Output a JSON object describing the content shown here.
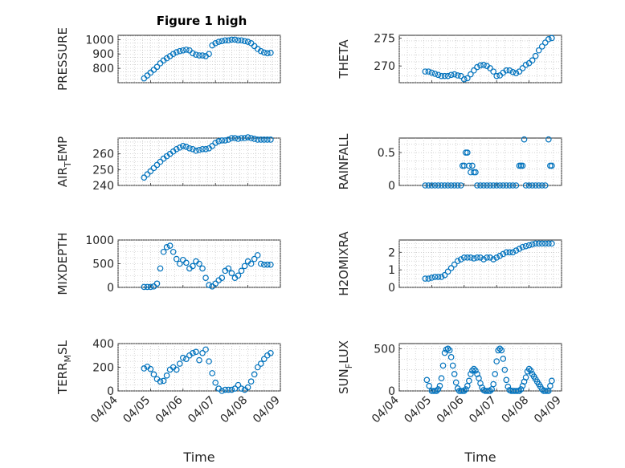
{
  "figure_title": "Figure 1 high",
  "colors": {
    "marker": "#0072BD",
    "axis": "#262626",
    "grid": "#b8b8b8"
  },
  "chart_data": [
    {
      "type": "scatter",
      "id": "pressure",
      "title": "Figure 1 high",
      "ylabel": {
        "main": "PRESSURE",
        "sub": ""
      },
      "xlim": [
        "04/04",
        "04/09"
      ],
      "ylim": [
        700,
        1030
      ],
      "yticks": [
        800,
        900,
        1000
      ],
      "xticklabels": [],
      "xlabel": "",
      "grid": true,
      "x": [
        4.8,
        4.9,
        5.0,
        5.1,
        5.2,
        5.3,
        5.4,
        5.5,
        5.6,
        5.7,
        5.8,
        5.9,
        6.0,
        6.1,
        6.2,
        6.3,
        6.4,
        6.5,
        6.6,
        6.7,
        6.8,
        6.9,
        7.0,
        7.1,
        7.2,
        7.3,
        7.4,
        7.5,
        7.6,
        7.7,
        7.8,
        7.9,
        8.0,
        8.1,
        8.2,
        8.3,
        8.4,
        8.5,
        8.6,
        8.7
      ],
      "y": [
        730,
        750,
        770,
        790,
        810,
        835,
        855,
        870,
        885,
        900,
        912,
        920,
        925,
        930,
        925,
        905,
        895,
        890,
        890,
        885,
        900,
        960,
        975,
        985,
        990,
        995,
        995,
        1000,
        1000,
        995,
        995,
        990,
        985,
        975,
        955,
        935,
        920,
        910,
        905,
        908
      ]
    },
    {
      "type": "scatter",
      "id": "theta",
      "ylabel": {
        "main": "THETA",
        "sub": ""
      },
      "xlim": [
        "04/04",
        "04/09"
      ],
      "ylim": [
        267,
        275.5
      ],
      "yticks": [
        270,
        275
      ],
      "xticklabels": [],
      "xlabel": "",
      "grid": true,
      "x": [
        4.8,
        4.9,
        5.0,
        5.1,
        5.2,
        5.3,
        5.4,
        5.5,
        5.6,
        5.7,
        5.8,
        5.9,
        6.0,
        6.1,
        6.2,
        6.3,
        6.4,
        6.5,
        6.6,
        6.7,
        6.8,
        6.9,
        7.0,
        7.1,
        7.2,
        7.3,
        7.4,
        7.5,
        7.6,
        7.7,
        7.8,
        7.9,
        8.0,
        8.1,
        8.2,
        8.3,
        8.4,
        8.5,
        8.6,
        8.7
      ],
      "y": [
        269,
        269,
        268.8,
        268.6,
        268.4,
        268.2,
        268.2,
        268.2,
        268.4,
        268.5,
        268.3,
        268.2,
        267.6,
        267.8,
        268.5,
        269.2,
        269.8,
        270.1,
        270.2,
        270,
        269.6,
        269,
        268.2,
        268.3,
        268.8,
        269.2,
        269.2,
        268.9,
        268.7,
        269,
        269.6,
        270.2,
        270.5,
        271,
        271.8,
        272.8,
        273.5,
        274.2,
        274.8,
        275
      ]
    },
    {
      "type": "scatter",
      "id": "air_temp",
      "ylabel": {
        "main": "AIR",
        "sub": "T",
        "tail": "EMP"
      },
      "xlim": [
        "04/04",
        "04/09"
      ],
      "ylim": [
        240,
        270
      ],
      "yticks": [
        240,
        250,
        260
      ],
      "xticklabels": [],
      "xlabel": "",
      "grid": true,
      "x": [
        4.8,
        4.9,
        5.0,
        5.1,
        5.2,
        5.3,
        5.4,
        5.5,
        5.6,
        5.7,
        5.8,
        5.9,
        6.0,
        6.1,
        6.2,
        6.3,
        6.4,
        6.5,
        6.6,
        6.7,
        6.8,
        6.9,
        7.0,
        7.1,
        7.2,
        7.3,
        7.4,
        7.5,
        7.6,
        7.7,
        7.8,
        7.9,
        8.0,
        8.1,
        8.2,
        8.3,
        8.4,
        8.5,
        8.6,
        8.7
      ],
      "y": [
        245,
        247,
        249,
        251,
        253,
        255,
        257,
        258.5,
        260,
        261.5,
        263,
        264,
        265,
        264.5,
        263.5,
        263,
        262,
        262.5,
        263,
        263,
        263.5,
        265,
        267,
        268,
        268.5,
        268.5,
        269,
        270,
        270,
        269.5,
        270,
        270,
        270.5,
        270,
        269.5,
        269,
        269,
        269,
        269,
        269
      ]
    },
    {
      "type": "scatter",
      "id": "rainfall",
      "ylabel": {
        "main": "RAINFALL",
        "sub": ""
      },
      "xlim": [
        "04/04",
        "04/09"
      ],
      "ylim": [
        0,
        0.72
      ],
      "yticks": [
        0,
        0.5
      ],
      "xticklabels": [],
      "xlabel": "",
      "grid": true,
      "x": [
        4.8,
        4.9,
        5.0,
        5.1,
        5.2,
        5.3,
        5.4,
        5.5,
        5.6,
        5.7,
        5.8,
        5.9,
        5.95,
        6.0,
        6.05,
        6.1,
        6.15,
        6.2,
        6.25,
        6.3,
        6.35,
        6.4,
        6.5,
        6.6,
        6.7,
        6.8,
        6.9,
        7.0,
        7.1,
        7.2,
        7.3,
        7.4,
        7.5,
        7.6,
        7.7,
        7.75,
        7.8,
        7.85,
        7.9,
        8.0,
        8.1,
        8.2,
        8.3,
        8.4,
        8.5,
        8.6,
        8.65,
        8.7
      ],
      "y": [
        0,
        0,
        0,
        0,
        0,
        0,
        0,
        0,
        0,
        0,
        0,
        0,
        0.3,
        0.3,
        0.5,
        0.5,
        0.3,
        0.2,
        0.3,
        0.2,
        0.2,
        0,
        0,
        0,
        0,
        0,
        0,
        0,
        0,
        0,
        0,
        0,
        0,
        0,
        0.3,
        0.3,
        0.3,
        0.7,
        0,
        0,
        0,
        0,
        0,
        0,
        0,
        0.7,
        0.3,
        0.3
      ]
    },
    {
      "type": "scatter",
      "id": "mixdepth",
      "ylabel": {
        "main": "MIXDEPTH",
        "sub": ""
      },
      "xlim": [
        "04/04",
        "04/09"
      ],
      "ylim": [
        0,
        1000
      ],
      "yticks": [
        0,
        500,
        1000
      ],
      "xticklabels": [],
      "xlabel": "",
      "grid": true,
      "x": [
        4.8,
        4.9,
        5.0,
        5.1,
        5.2,
        5.3,
        5.4,
        5.5,
        5.6,
        5.7,
        5.8,
        5.9,
        6.0,
        6.1,
        6.2,
        6.3,
        6.4,
        6.5,
        6.6,
        6.7,
        6.8,
        6.9,
        7.0,
        7.1,
        7.2,
        7.3,
        7.4,
        7.5,
        7.6,
        7.7,
        7.8,
        7.9,
        8.0,
        8.1,
        8.2,
        8.3,
        8.4,
        8.5,
        8.6,
        8.7
      ],
      "y": [
        10,
        10,
        10,
        20,
        80,
        400,
        750,
        850,
        880,
        750,
        600,
        500,
        580,
        520,
        400,
        450,
        550,
        500,
        400,
        200,
        50,
        20,
        80,
        150,
        200,
        350,
        400,
        300,
        200,
        250,
        350,
        450,
        550,
        500,
        600,
        680,
        500,
        480,
        480,
        480
      ]
    },
    {
      "type": "scatter",
      "id": "h2omixra",
      "ylabel": {
        "main": "H2OMIXRA",
        "sub": ""
      },
      "xlim": [
        "04/04",
        "04/09"
      ],
      "ylim": [
        0,
        2.7
      ],
      "yticks": [
        0,
        1,
        2
      ],
      "xticklabels": [],
      "xlabel": "",
      "grid": true,
      "x": [
        4.8,
        4.9,
        5.0,
        5.1,
        5.2,
        5.3,
        5.4,
        5.5,
        5.6,
        5.7,
        5.8,
        5.9,
        6.0,
        6.1,
        6.2,
        6.3,
        6.4,
        6.5,
        6.6,
        6.7,
        6.8,
        6.9,
        7.0,
        7.1,
        7.2,
        7.3,
        7.4,
        7.5,
        7.6,
        7.7,
        7.8,
        7.9,
        8.0,
        8.1,
        8.2,
        8.3,
        8.4,
        8.5,
        8.6,
        8.7
      ],
      "y": [
        0.5,
        0.5,
        0.55,
        0.6,
        0.6,
        0.6,
        0.7,
        0.9,
        1.1,
        1.3,
        1.5,
        1.6,
        1.7,
        1.7,
        1.7,
        1.65,
        1.7,
        1.7,
        1.6,
        1.7,
        1.7,
        1.6,
        1.7,
        1.8,
        1.9,
        2.0,
        2.0,
        2.0,
        2.1,
        2.2,
        2.3,
        2.35,
        2.4,
        2.45,
        2.5,
        2.5,
        2.5,
        2.5,
        2.5,
        2.5
      ]
    },
    {
      "type": "scatter",
      "id": "terr_msl",
      "ylabel": {
        "main": "TERR",
        "sub": "M",
        "tail": "SL"
      },
      "xlim": [
        "04/04",
        "04/09"
      ],
      "ylim": [
        0,
        400
      ],
      "yticks": [
        0,
        200,
        400
      ],
      "xticklabels": [
        "04/04",
        "04/05",
        "04/06",
        "04/07",
        "04/08",
        "04/09"
      ],
      "xlabel": "Time",
      "grid": true,
      "x": [
        4.8,
        4.9,
        5.0,
        5.1,
        5.2,
        5.3,
        5.4,
        5.5,
        5.6,
        5.7,
        5.8,
        5.9,
        6.0,
        6.1,
        6.2,
        6.3,
        6.4,
        6.5,
        6.6,
        6.7,
        6.8,
        6.9,
        7.0,
        7.1,
        7.2,
        7.3,
        7.4,
        7.5,
        7.6,
        7.7,
        7.8,
        7.9,
        8.0,
        8.1,
        8.2,
        8.3,
        8.4,
        8.5,
        8.6,
        8.7
      ],
      "y": [
        190,
        205,
        185,
        140,
        100,
        80,
        85,
        130,
        180,
        200,
        180,
        230,
        280,
        270,
        300,
        320,
        330,
        260,
        320,
        350,
        250,
        150,
        70,
        20,
        0,
        10,
        10,
        10,
        20,
        50,
        20,
        10,
        30,
        80,
        140,
        200,
        230,
        270,
        300,
        320
      ]
    },
    {
      "type": "scatter",
      "id": "sun_flux",
      "ylabel": {
        "main": "SUN",
        "sub": "F",
        "tail": "LUX"
      },
      "xlim": [
        "04/04",
        "04/09"
      ],
      "ylim": [
        0,
        560
      ],
      "yticks": [
        0,
        500
      ],
      "xticklabels": [
        "04/04",
        "04/05",
        "04/06",
        "04/07",
        "04/08",
        "04/09"
      ],
      "xlabel": "Time",
      "grid": true,
      "x": [
        4.85,
        4.92,
        5.0,
        5.05,
        5.1,
        5.15,
        5.2,
        5.25,
        5.3,
        5.35,
        5.4,
        5.45,
        5.5,
        5.55,
        5.6,
        5.65,
        5.7,
        5.75,
        5.8,
        5.85,
        5.9,
        5.95,
        6.0,
        6.05,
        6.1,
        6.15,
        6.2,
        6.25,
        6.3,
        6.35,
        6.4,
        6.45,
        6.5,
        6.55,
        6.6,
        6.65,
        6.7,
        6.75,
        6.8,
        6.85,
        6.9,
        6.95,
        7.0,
        7.05,
        7.1,
        7.15,
        7.2,
        7.25,
        7.3,
        7.35,
        7.4,
        7.45,
        7.5,
        7.55,
        7.6,
        7.65,
        7.7,
        7.75,
        7.8,
        7.85,
        7.9,
        7.95,
        8.0,
        8.05,
        8.1,
        8.15,
        8.2,
        8.25,
        8.3,
        8.35,
        8.4,
        8.45,
        8.5,
        8.55,
        8.6,
        8.65,
        8.7
      ],
      "y": [
        130,
        60,
        0,
        0,
        0,
        0,
        20,
        60,
        150,
        300,
        450,
        490,
        500,
        480,
        400,
        300,
        200,
        100,
        30,
        0,
        0,
        0,
        0,
        20,
        60,
        120,
        200,
        240,
        260,
        240,
        200,
        150,
        90,
        40,
        10,
        0,
        0,
        0,
        0,
        20,
        80,
        200,
        350,
        480,
        500,
        480,
        380,
        250,
        130,
        50,
        10,
        0,
        0,
        0,
        0,
        0,
        0,
        20,
        60,
        110,
        160,
        230,
        260,
        240,
        200,
        170,
        140,
        110,
        80,
        50,
        20,
        0,
        0,
        0,
        0,
        60,
        120
      ]
    }
  ]
}
